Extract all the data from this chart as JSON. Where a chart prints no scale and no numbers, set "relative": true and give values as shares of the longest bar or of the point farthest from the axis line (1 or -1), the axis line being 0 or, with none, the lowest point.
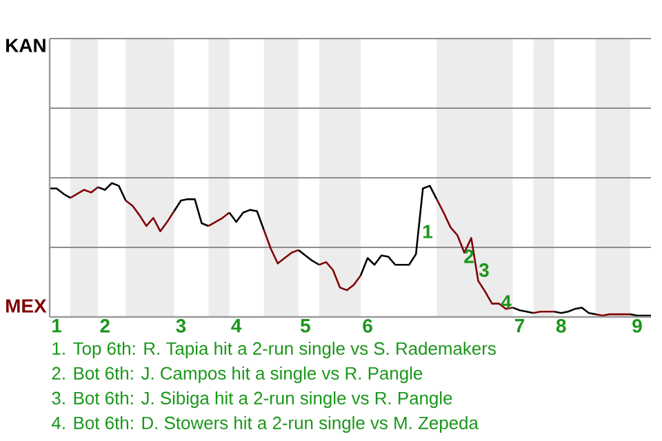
{
  "chart_data": {
    "type": "line",
    "relative": true,
    "categories": [
      null,
      "1",
      null,
      null,
      null,
      null,
      null,
      null,
      "2",
      null,
      null,
      null,
      null,
      null,
      null,
      null,
      null,
      null,
      null,
      "3",
      null,
      null,
      null,
      null,
      null,
      null,
      null,
      "4",
      null,
      null,
      null,
      null,
      null,
      null,
      null,
      null,
      null,
      "5",
      null,
      null,
      null,
      null,
      null,
      null,
      null,
      null,
      "6",
      null,
      null,
      null,
      null,
      null,
      null,
      null,
      null,
      null,
      null,
      null,
      null,
      null,
      null,
      null,
      null,
      null,
      null,
      null,
      null,
      null,
      "7",
      null,
      null,
      null,
      null,
      null,
      "8",
      null,
      null,
      null,
      null,
      null,
      null,
      null,
      null,
      null,
      null,
      "9",
      null,
      null
    ],
    "series": [
      {
        "color": "#000000",
        "values": [
          0.96,
          0.96,
          0.92,
          0.89,
          null,
          null,
          null,
          null,
          null,
          null,
          null,
          null,
          null,
          null,
          null,
          null,
          null,
          null,
          null,
          null,
          null,
          null,
          null,
          null,
          null,
          null,
          null,
          null,
          null,
          null,
          null,
          null,
          null,
          null,
          null,
          null,
          null,
          null,
          null,
          null,
          null,
          null,
          null,
          null,
          null,
          null,
          null,
          null,
          null,
          null,
          null,
          null,
          null,
          null,
          null,
          null,
          null,
          null,
          null,
          null,
          null,
          null,
          null,
          null,
          null,
          null,
          null,
          null,
          null,
          null,
          null,
          null,
          null,
          null,
          null,
          null,
          null,
          null,
          null,
          null,
          null,
          null,
          null,
          null,
          null,
          null,
          null,
          null
        ]
      },
      {
        "color": "#800000",
        "values": [
          null,
          null,
          null,
          0.89,
          0.92,
          0.95,
          0.93,
          0.97,
          null,
          null,
          null,
          null,
          null,
          null,
          null,
          null,
          null,
          null,
          null,
          null,
          null,
          null,
          null,
          null,
          null,
          null,
          null,
          null,
          null,
          null,
          null,
          null,
          null,
          null,
          null,
          null,
          null,
          null,
          null,
          null,
          null,
          null,
          null,
          null,
          null,
          null,
          null,
          null,
          null,
          null,
          null,
          null,
          null,
          null,
          null,
          null,
          null,
          null,
          null,
          null,
          null,
          null,
          null,
          null,
          null,
          null,
          null,
          null,
          null,
          null,
          null,
          null,
          null,
          null,
          null,
          null,
          null,
          null,
          null,
          null,
          null,
          null,
          null,
          null,
          null,
          null,
          null,
          null
        ]
      },
      {
        "color": "#000000",
        "values": [
          null,
          null,
          null,
          null,
          null,
          null,
          null,
          0.97,
          0.95,
          1,
          0.98,
          0.87,
          null,
          null,
          null,
          null,
          null,
          null,
          null,
          null,
          null,
          null,
          null,
          null,
          null,
          null,
          null,
          null,
          null,
          null,
          null,
          null,
          null,
          null,
          null,
          null,
          null,
          null,
          null,
          null,
          null,
          null,
          null,
          null,
          null,
          null,
          null,
          null,
          null,
          null,
          null,
          null,
          null,
          null,
          null,
          null,
          null,
          null,
          null,
          null,
          null,
          null,
          null,
          null,
          null,
          null,
          null,
          null,
          null,
          null,
          null,
          null,
          null,
          null,
          null,
          null,
          null,
          null,
          null,
          null,
          null,
          null,
          null,
          null,
          null,
          null,
          null,
          null
        ]
      },
      {
        "color": "#800000",
        "values": [
          null,
          null,
          null,
          null,
          null,
          null,
          null,
          null,
          null,
          null,
          null,
          0.87,
          0.83,
          0.76,
          0.68,
          0.74,
          0.64,
          0.71,
          0.79,
          null,
          null,
          null,
          null,
          null,
          null,
          null,
          null,
          null,
          null,
          null,
          null,
          null,
          null,
          null,
          null,
          null,
          null,
          null,
          null,
          null,
          null,
          null,
          null,
          null,
          null,
          null,
          null,
          null,
          null,
          null,
          null,
          null,
          null,
          null,
          null,
          null,
          null,
          null,
          null,
          null,
          null,
          null,
          null,
          null,
          null,
          null,
          null,
          null,
          null,
          null,
          null,
          null,
          null,
          null,
          null,
          null,
          null,
          null,
          null,
          null,
          null,
          null,
          null,
          null,
          null,
          null,
          null,
          null
        ]
      },
      {
        "color": "#000000",
        "values": [
          null,
          null,
          null,
          null,
          null,
          null,
          null,
          null,
          null,
          null,
          null,
          null,
          null,
          null,
          null,
          null,
          null,
          null,
          0.79,
          0.87,
          0.88,
          0.88,
          0.7,
          0.68,
          null,
          null,
          null,
          null,
          null,
          null,
          null,
          null,
          null,
          null,
          null,
          null,
          null,
          null,
          null,
          null,
          null,
          null,
          null,
          null,
          null,
          null,
          null,
          null,
          null,
          null,
          null,
          null,
          null,
          null,
          null,
          null,
          null,
          null,
          null,
          null,
          null,
          null,
          null,
          null,
          null,
          null,
          null,
          null,
          null,
          null,
          null,
          null,
          null,
          null,
          null,
          null,
          null,
          null,
          null,
          null,
          null,
          null,
          null,
          null,
          null,
          null,
          null,
          null
        ]
      },
      {
        "color": "#800000",
        "values": [
          null,
          null,
          null,
          null,
          null,
          null,
          null,
          null,
          null,
          null,
          null,
          null,
          null,
          null,
          null,
          null,
          null,
          null,
          null,
          null,
          null,
          null,
          null,
          0.68,
          0.71,
          0.74,
          0.78,
          null,
          null,
          null,
          null,
          null,
          null,
          null,
          null,
          null,
          null,
          null,
          null,
          null,
          null,
          null,
          null,
          null,
          null,
          null,
          null,
          null,
          null,
          null,
          null,
          null,
          null,
          null,
          null,
          null,
          null,
          null,
          null,
          null,
          null,
          null,
          null,
          null,
          null,
          null,
          null,
          null,
          null,
          null,
          null,
          null,
          null,
          null,
          null,
          null,
          null,
          null,
          null,
          null,
          null,
          null,
          null,
          null,
          null,
          null,
          null,
          null
        ]
      },
      {
        "color": "#000000",
        "values": [
          null,
          null,
          null,
          null,
          null,
          null,
          null,
          null,
          null,
          null,
          null,
          null,
          null,
          null,
          null,
          null,
          null,
          null,
          null,
          null,
          null,
          null,
          null,
          null,
          null,
          null,
          0.78,
          0.71,
          0.78,
          0.8,
          0.79,
          0.65,
          null,
          null,
          null,
          null,
          null,
          null,
          null,
          null,
          null,
          null,
          null,
          null,
          null,
          null,
          null,
          null,
          null,
          null,
          null,
          null,
          null,
          null,
          null,
          null,
          null,
          null,
          null,
          null,
          null,
          null,
          null,
          null,
          null,
          null,
          null,
          null,
          null,
          null,
          null,
          null,
          null,
          null,
          null,
          null,
          null,
          null,
          null,
          null,
          null,
          null,
          null,
          null,
          null,
          null,
          null,
          null
        ]
      },
      {
        "color": "#800000",
        "values": [
          null,
          null,
          null,
          null,
          null,
          null,
          null,
          null,
          null,
          null,
          null,
          null,
          null,
          null,
          null,
          null,
          null,
          null,
          null,
          null,
          null,
          null,
          null,
          null,
          null,
          null,
          null,
          null,
          null,
          null,
          null,
          0.65,
          0.51,
          0.4,
          0.44,
          0.48,
          0.5,
          null,
          null,
          null,
          null,
          null,
          null,
          null,
          null,
          null,
          null,
          null,
          null,
          null,
          null,
          null,
          null,
          null,
          null,
          null,
          null,
          null,
          null,
          null,
          null,
          null,
          null,
          null,
          null,
          null,
          null,
          null,
          null,
          null,
          null,
          null,
          null,
          null,
          null,
          null,
          null,
          null,
          null,
          null,
          null,
          null,
          null,
          null,
          null,
          null,
          null,
          null
        ]
      },
      {
        "color": "#000000",
        "values": [
          null,
          null,
          null,
          null,
          null,
          null,
          null,
          null,
          null,
          null,
          null,
          null,
          null,
          null,
          null,
          null,
          null,
          null,
          null,
          null,
          null,
          null,
          null,
          null,
          null,
          null,
          null,
          null,
          null,
          null,
          null,
          null,
          null,
          null,
          null,
          null,
          0.5,
          0.46,
          0.42,
          0.39,
          null,
          null,
          null,
          null,
          null,
          null,
          null,
          null,
          null,
          null,
          null,
          null,
          null,
          null,
          null,
          null,
          null,
          null,
          null,
          null,
          null,
          null,
          null,
          null,
          null,
          null,
          null,
          null,
          null,
          null,
          null,
          null,
          null,
          null,
          null,
          null,
          null,
          null,
          null,
          null,
          null,
          null,
          null,
          null,
          null,
          null,
          null,
          null
        ]
      },
      {
        "color": "#800000",
        "values": [
          null,
          null,
          null,
          null,
          null,
          null,
          null,
          null,
          null,
          null,
          null,
          null,
          null,
          null,
          null,
          null,
          null,
          null,
          null,
          null,
          null,
          null,
          null,
          null,
          null,
          null,
          null,
          null,
          null,
          null,
          null,
          null,
          null,
          null,
          null,
          null,
          null,
          null,
          null,
          0.39,
          0.41,
          0.35,
          0.22,
          0.2,
          0.24,
          0.31,
          null,
          null,
          null,
          null,
          null,
          null,
          null,
          null,
          null,
          null,
          null,
          null,
          null,
          null,
          null,
          null,
          null,
          null,
          null,
          null,
          null,
          null,
          null,
          null,
          null,
          null,
          null,
          null,
          null,
          null,
          null,
          null,
          null,
          null,
          null,
          null,
          null,
          null,
          null,
          null,
          null,
          null
        ]
      },
      {
        "color": "#000000",
        "values": [
          null,
          null,
          null,
          null,
          null,
          null,
          null,
          null,
          null,
          null,
          null,
          null,
          null,
          null,
          null,
          null,
          null,
          null,
          null,
          null,
          null,
          null,
          null,
          null,
          null,
          null,
          null,
          null,
          null,
          null,
          null,
          null,
          null,
          null,
          null,
          null,
          null,
          null,
          null,
          null,
          null,
          null,
          null,
          null,
          null,
          0.31,
          0.44,
          0.39,
          0.46,
          0.45,
          0.39,
          0.39,
          0.39,
          0.47,
          0.96,
          0.98,
          0.88,
          null,
          null,
          null,
          null,
          null,
          null,
          null,
          null,
          null,
          null,
          null,
          null,
          null,
          null,
          null,
          null,
          null,
          null,
          null,
          null,
          null,
          null,
          null,
          null,
          null,
          null,
          null,
          null,
          null,
          null,
          null
        ]
      },
      {
        "color": "#800000",
        "values": [
          null,
          null,
          null,
          null,
          null,
          null,
          null,
          null,
          null,
          null,
          null,
          null,
          null,
          null,
          null,
          null,
          null,
          null,
          null,
          null,
          null,
          null,
          null,
          null,
          null,
          null,
          null,
          null,
          null,
          null,
          null,
          null,
          null,
          null,
          null,
          null,
          null,
          null,
          null,
          null,
          null,
          null,
          null,
          null,
          null,
          null,
          null,
          null,
          null,
          null,
          null,
          null,
          null,
          null,
          null,
          null,
          0.88,
          0.78,
          0.67,
          0.61,
          0.48,
          0.59,
          0.27,
          0.19,
          0.1,
          0.1,
          0.06,
          0.07,
          null,
          null,
          null,
          null,
          null,
          null,
          null,
          null,
          null,
          null,
          null,
          null,
          null,
          null,
          null,
          null,
          null,
          null,
          null,
          null
        ]
      },
      {
        "color": "#000000",
        "values": [
          null,
          null,
          null,
          null,
          null,
          null,
          null,
          null,
          null,
          null,
          null,
          null,
          null,
          null,
          null,
          null,
          null,
          null,
          null,
          null,
          null,
          null,
          null,
          null,
          null,
          null,
          null,
          null,
          null,
          null,
          null,
          null,
          null,
          null,
          null,
          null,
          null,
          null,
          null,
          null,
          null,
          null,
          null,
          null,
          null,
          null,
          null,
          null,
          null,
          null,
          null,
          null,
          null,
          null,
          null,
          null,
          null,
          null,
          null,
          null,
          null,
          null,
          null,
          null,
          null,
          null,
          null,
          0.07,
          0.05,
          0.04,
          0.03,
          null,
          null,
          null,
          null,
          null,
          null,
          null,
          null,
          null,
          null,
          null,
          null,
          null,
          null,
          null,
          null,
          null
        ]
      },
      {
        "color": "#800000",
        "values": [
          null,
          null,
          null,
          null,
          null,
          null,
          null,
          null,
          null,
          null,
          null,
          null,
          null,
          null,
          null,
          null,
          null,
          null,
          null,
          null,
          null,
          null,
          null,
          null,
          null,
          null,
          null,
          null,
          null,
          null,
          null,
          null,
          null,
          null,
          null,
          null,
          null,
          null,
          null,
          null,
          null,
          null,
          null,
          null,
          null,
          null,
          null,
          null,
          null,
          null,
          null,
          null,
          null,
          null,
          null,
          null,
          null,
          null,
          null,
          null,
          null,
          null,
          null,
          null,
          null,
          null,
          null,
          null,
          null,
          null,
          0.03,
          0.04,
          0.04,
          0.04,
          null,
          null,
          null,
          null,
          null,
          null,
          null,
          null,
          null,
          null,
          null,
          null,
          null,
          null
        ]
      },
      {
        "color": "#000000",
        "values": [
          null,
          null,
          null,
          null,
          null,
          null,
          null,
          null,
          null,
          null,
          null,
          null,
          null,
          null,
          null,
          null,
          null,
          null,
          null,
          null,
          null,
          null,
          null,
          null,
          null,
          null,
          null,
          null,
          null,
          null,
          null,
          null,
          null,
          null,
          null,
          null,
          null,
          null,
          null,
          null,
          null,
          null,
          null,
          null,
          null,
          null,
          null,
          null,
          null,
          null,
          null,
          null,
          null,
          null,
          null,
          null,
          null,
          null,
          null,
          null,
          null,
          null,
          null,
          null,
          null,
          null,
          null,
          null,
          null,
          null,
          null,
          null,
          null,
          0.04,
          0.03,
          0.04,
          0.06,
          0.07,
          0.03,
          0.02,
          null,
          null,
          null,
          null,
          null,
          null,
          null,
          null
        ]
      },
      {
        "color": "#800000",
        "values": [
          null,
          null,
          null,
          null,
          null,
          null,
          null,
          null,
          null,
          null,
          null,
          null,
          null,
          null,
          null,
          null,
          null,
          null,
          null,
          null,
          null,
          null,
          null,
          null,
          null,
          null,
          null,
          null,
          null,
          null,
          null,
          null,
          null,
          null,
          null,
          null,
          null,
          null,
          null,
          null,
          null,
          null,
          null,
          null,
          null,
          null,
          null,
          null,
          null,
          null,
          null,
          null,
          null,
          null,
          null,
          null,
          null,
          null,
          null,
          null,
          null,
          null,
          null,
          null,
          null,
          null,
          null,
          null,
          null,
          null,
          null,
          null,
          null,
          null,
          null,
          null,
          null,
          null,
          null,
          0.02,
          0.01,
          0.02,
          0.02,
          0.02,
          0.02,
          null,
          null,
          null
        ]
      },
      {
        "color": "#000000",
        "values": [
          null,
          null,
          null,
          null,
          null,
          null,
          null,
          null,
          null,
          null,
          null,
          null,
          null,
          null,
          null,
          null,
          null,
          null,
          null,
          null,
          null,
          null,
          null,
          null,
          null,
          null,
          null,
          null,
          null,
          null,
          null,
          null,
          null,
          null,
          null,
          null,
          null,
          null,
          null,
          null,
          null,
          null,
          null,
          null,
          null,
          null,
          null,
          null,
          null,
          null,
          null,
          null,
          null,
          null,
          null,
          null,
          null,
          null,
          null,
          null,
          null,
          null,
          null,
          null,
          null,
          null,
          null,
          null,
          null,
          null,
          null,
          null,
          null,
          null,
          null,
          null,
          null,
          null,
          null,
          null,
          null,
          null,
          null,
          null,
          0.02,
          0.01,
          0.01,
          0.01
        ]
      }
    ],
    "ref_lines": [
      {
        "axis": "y",
        "value": 0.52,
        "color": "#8c8c8c"
      },
      {
        "axis": "y",
        "value": 1.04,
        "color": "#8c8c8c"
      },
      {
        "axis": "y",
        "value": 1.56,
        "color": "#8c8c8c"
      },
      {
        "axis": "y",
        "value": 2.08,
        "color": "#8c8c8c"
      }
    ],
    "annotations": [
      "KAN",
      "MEX",
      "1",
      "2",
      "3",
      "4",
      "1. Top 6th: R. Tapia hit a 2-run single vs S. Rademakers",
      "2. Bot 6th: J. Campos hit a single vs R. Pangle",
      "3. Bot 6th: J. Sibiga hit a 2-run single vs R. Pangle",
      "4. Bot 6th: D. Stowers hit a 2-run single vs M. Zepeda"
    ]
  }
}
